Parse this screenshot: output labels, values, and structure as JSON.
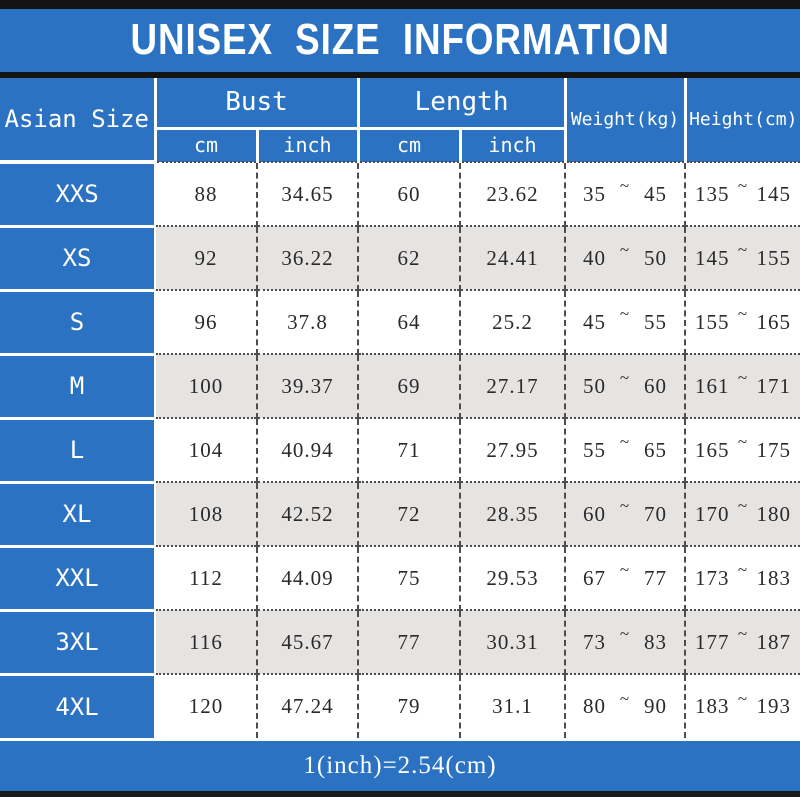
{
  "title": "UNISEX SIZE INFORMATION",
  "colors": {
    "blue": "#2B73C2",
    "alt_row_gray": "#E6E4E3",
    "top_bar_black": "#141414",
    "grid_line": "#4D4D4D"
  },
  "table": {
    "tilde": "~",
    "headers": {
      "size": "Asian Size",
      "bust": "Bust",
      "length": "Length",
      "weight": "Weight(kg)",
      "height": "Height(cm)",
      "bust_cm": "cm",
      "bust_inch": "inch",
      "length_cm": "cm",
      "length_inch": "inch"
    },
    "rows": [
      {
        "size": "XXS",
        "bust_cm": "88",
        "bust_inch": "34.65",
        "length_cm": "60",
        "length_inch": "23.62",
        "weight": [
          "35",
          "45"
        ],
        "height": [
          "135",
          "145"
        ]
      },
      {
        "size": "XS",
        "bust_cm": "92",
        "bust_inch": "36.22",
        "length_cm": "62",
        "length_inch": "24.41",
        "weight": [
          "40",
          "50"
        ],
        "height": [
          "145",
          "155"
        ]
      },
      {
        "size": "S",
        "bust_cm": "96",
        "bust_inch": "37.8",
        "length_cm": "64",
        "length_inch": "25.2",
        "weight": [
          "45",
          "55"
        ],
        "height": [
          "155",
          "165"
        ]
      },
      {
        "size": "M",
        "bust_cm": "100",
        "bust_inch": "39.37",
        "length_cm": "69",
        "length_inch": "27.17",
        "weight": [
          "50",
          "60"
        ],
        "height": [
          "161",
          "171"
        ]
      },
      {
        "size": "L",
        "bust_cm": "104",
        "bust_inch": "40.94",
        "length_cm": "71",
        "length_inch": "27.95",
        "weight": [
          "55",
          "65"
        ],
        "height": [
          "165",
          "175"
        ]
      },
      {
        "size": "XL",
        "bust_cm": "108",
        "bust_inch": "42.52",
        "length_cm": "72",
        "length_inch": "28.35",
        "weight": [
          "60",
          "70"
        ],
        "height": [
          "170",
          "180"
        ]
      },
      {
        "size": "XXL",
        "bust_cm": "112",
        "bust_inch": "44.09",
        "length_cm": "75",
        "length_inch": "29.53",
        "weight": [
          "67",
          "77"
        ],
        "height": [
          "173",
          "183"
        ]
      },
      {
        "size": "3XL",
        "bust_cm": "116",
        "bust_inch": "45.67",
        "length_cm": "77",
        "length_inch": "30.31",
        "weight": [
          "73",
          "83"
        ],
        "height": [
          "177",
          "187"
        ]
      },
      {
        "size": "4XL",
        "bust_cm": "120",
        "bust_inch": "47.24",
        "length_cm": "79",
        "length_inch": "31.1",
        "weight": [
          "80",
          "90"
        ],
        "height": [
          "183",
          "193"
        ]
      }
    ]
  },
  "footer": {
    "conversion_note": "1(inch)=2.54(cm)"
  }
}
